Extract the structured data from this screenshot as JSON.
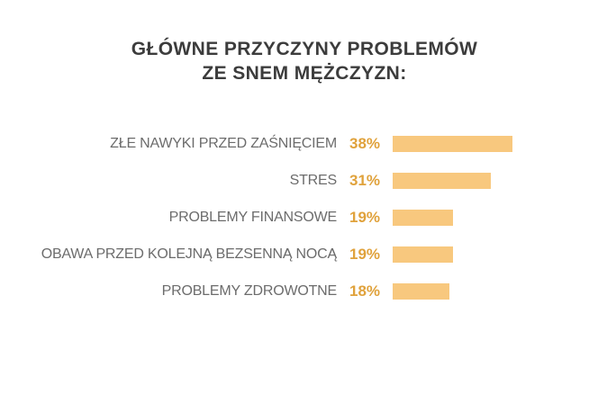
{
  "title": {
    "line1": "GŁÓWNE PRZYCZYNY PROBLEMÓW",
    "line2": "ZE SNEM MĘŻCZYZN:"
  },
  "chart_data": {
    "type": "bar",
    "orientation": "horizontal",
    "title": "GŁÓWNE PRZYCZYNY PROBLEMÓW ZE SNEM MĘŻCZYZN:",
    "categories": [
      "ZŁE NAWYKI PRZED ZAŚNIĘCIEM",
      "STRES",
      "PROBLEMY FINANSOWE",
      "OBAWA PRZED KOLEJNĄ BEZSENNĄ NOCĄ",
      "PROBLEMY ZDROWOTNE"
    ],
    "values": [
      38,
      31,
      19,
      19,
      18
    ],
    "value_labels": [
      "38%",
      "31%",
      "19%",
      "19%",
      "18%"
    ],
    "unit": "%",
    "xlim": [
      0,
      40
    ],
    "grid": false,
    "legend": false,
    "axes_visible": false,
    "colors": {
      "bar": "#F8C87E",
      "value_text": "#E0A23C",
      "label_text": "#6C6C6C",
      "title_text": "#3C3C3C",
      "background": "#FFFFFF"
    }
  }
}
